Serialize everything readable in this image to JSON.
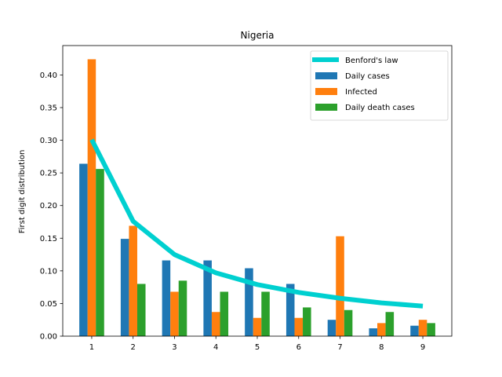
{
  "chart_data": {
    "type": "bar",
    "title": "Nigeria",
    "xlabel": "",
    "ylabel": "First digit distribution",
    "categories": [
      "1",
      "2",
      "3",
      "4",
      "5",
      "6",
      "7",
      "8",
      "9"
    ],
    "ylim": [
      0,
      0.445
    ],
    "yticks": [
      0.0,
      0.05,
      0.1,
      0.15,
      0.2,
      0.25,
      0.3,
      0.35,
      0.4
    ],
    "ytick_labels": [
      "0.00",
      "0.05",
      "0.10",
      "0.15",
      "0.20",
      "0.25",
      "0.30",
      "0.35",
      "0.40"
    ],
    "grid": false,
    "legend_position": "top-right",
    "series": [
      {
        "name": "Daily cases",
        "kind": "bar",
        "color": "#1f77b4",
        "values": [
          0.264,
          0.149,
          0.116,
          0.116,
          0.104,
          0.08,
          0.025,
          0.012,
          0.016
        ]
      },
      {
        "name": "Infected",
        "kind": "bar",
        "color": "#ff7f0e",
        "values": [
          0.424,
          0.169,
          0.068,
          0.037,
          0.028,
          0.028,
          0.153,
          0.02,
          0.025
        ]
      },
      {
        "name": "Daily death cases",
        "kind": "bar",
        "color": "#2ca02c",
        "values": [
          0.256,
          0.08,
          0.085,
          0.068,
          0.068,
          0.044,
          0.04,
          0.037,
          0.02
        ]
      }
    ],
    "line": {
      "name": "Benford's law",
      "kind": "line",
      "color": "#00d0d0",
      "values": [
        0.301,
        0.176,
        0.125,
        0.097,
        0.079,
        0.067,
        0.058,
        0.051,
        0.046
      ]
    }
  }
}
